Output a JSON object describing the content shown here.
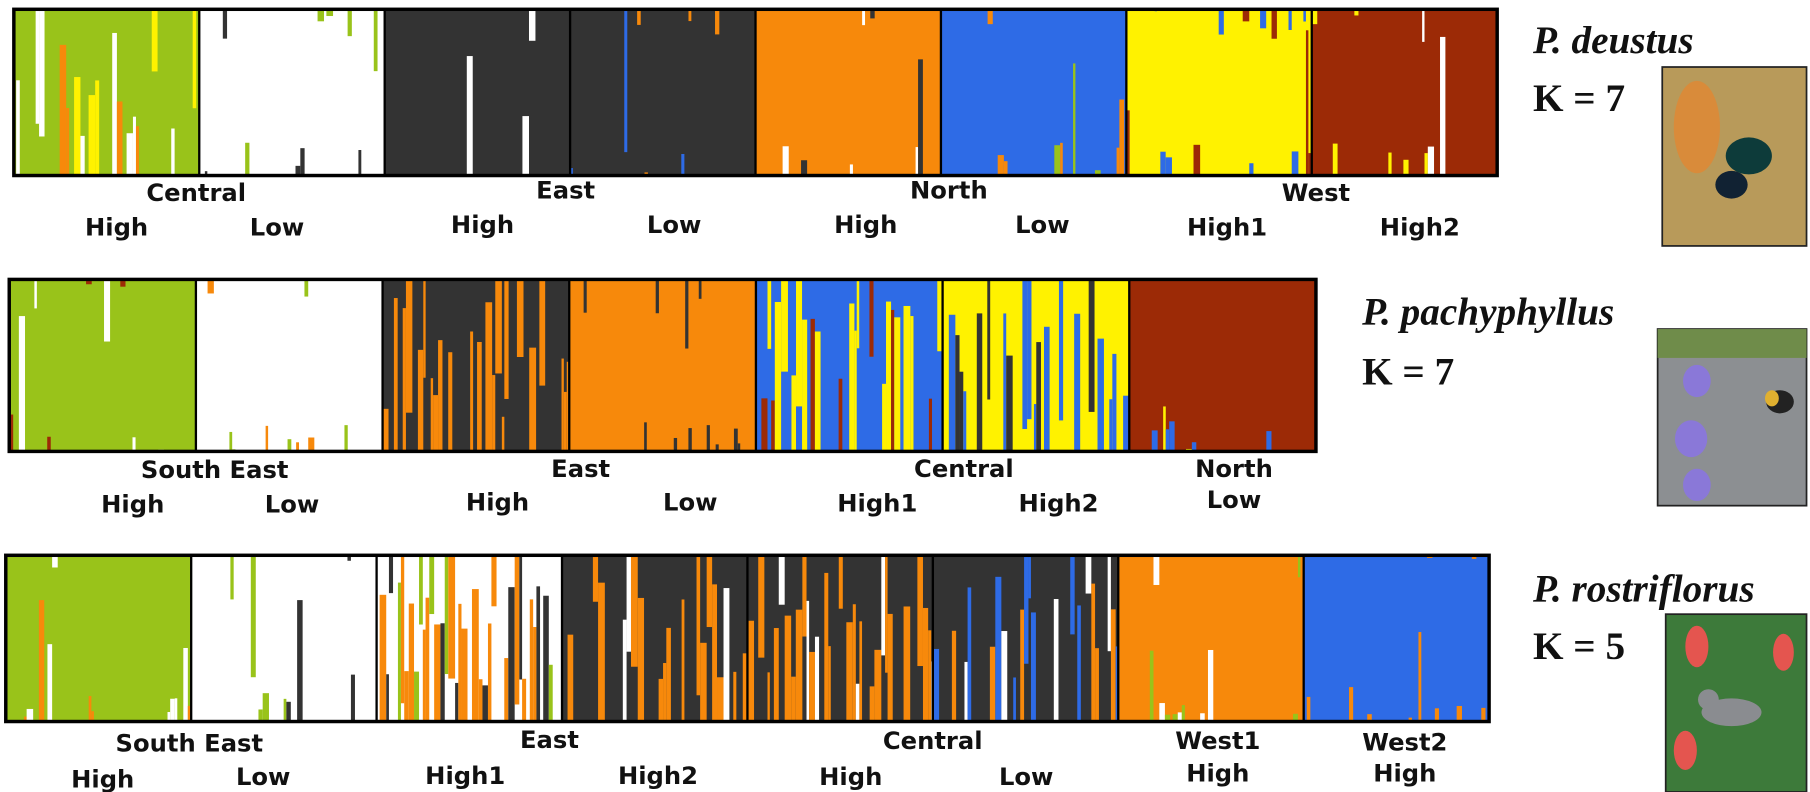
{
  "panels": [
    {
      "species": "P. deustus",
      "k_label": "K = 7",
      "groups": [
        "Central",
        "East",
        "North",
        "West"
      ],
      "subgroups": [
        "High",
        "Low",
        "High",
        "Low",
        "High",
        "Low",
        "High1",
        "High2"
      ],
      "blocks": [
        {
          "color": "#99c31a",
          "mix": [
            "#fff200",
            "#f7890b",
            "#ffffff"
          ]
        },
        {
          "color": "#ffffff",
          "mix": [
            "#99c31a",
            "#333333"
          ]
        },
        {
          "color": "#333333",
          "mix": [
            "#ffffff",
            "#f7890b"
          ]
        },
        {
          "color": "#333333",
          "mix": [
            "#f7890b",
            "#2e6be6"
          ]
        },
        {
          "color": "#f7890b",
          "mix": [
            "#ffffff",
            "#333333"
          ]
        },
        {
          "color": "#2e6be6",
          "mix": [
            "#f7890b",
            "#99c31a"
          ]
        },
        {
          "color": "#fff200",
          "mix": [
            "#2e6be6",
            "#9c2a06"
          ]
        },
        {
          "color": "#9c2a06",
          "mix": [
            "#fff200",
            "#ffffff"
          ]
        }
      ]
    },
    {
      "species": "P. pachyphyllus",
      "k_label": "K = 7",
      "groups": [
        "South East",
        "East",
        "Central",
        "North"
      ],
      "subgroups": [
        "High",
        "Low",
        "High",
        "Low",
        "High1",
        "High2",
        "Low"
      ],
      "blocks": [
        {
          "color": "#99c31a",
          "mix": [
            "#9c2a06",
            "#ffffff"
          ]
        },
        {
          "color": "#ffffff",
          "mix": [
            "#99c31a",
            "#f7890b"
          ]
        },
        {
          "color": "#333333",
          "mix": [
            "#f7890b",
            "#f7890b",
            "#f7890b"
          ]
        },
        {
          "color": "#f7890b",
          "mix": [
            "#333333",
            "#333333"
          ]
        },
        {
          "color": "#2e6be6",
          "mix": [
            "#fff200",
            "#fff200",
            "#9c2a06"
          ]
        },
        {
          "color": "#fff200",
          "mix": [
            "#2e6be6",
            "#2e6be6",
            "#333333"
          ]
        },
        {
          "color": "#9c2a06",
          "mix": [
            "#fff200",
            "#2e6be6"
          ]
        }
      ]
    },
    {
      "species": "P. rostriflorus",
      "k_label": "K = 5",
      "groups": [
        "South East",
        "East",
        "Central",
        "West1",
        "West2"
      ],
      "subgroups": [
        "High",
        "Low",
        "High1",
        "High2",
        "High",
        "Low",
        "High",
        "High"
      ],
      "blocks": [
        {
          "color": "#99c31a",
          "mix": [
            "#ffffff",
            "#f7890b"
          ]
        },
        {
          "color": "#ffffff",
          "mix": [
            "#99c31a",
            "#333333"
          ]
        },
        {
          "color": "#ffffff",
          "mix": [
            "#333333",
            "#f7890b",
            "#f7890b",
            "#99c31a"
          ]
        },
        {
          "color": "#333333",
          "mix": [
            "#ffffff",
            "#f7890b",
            "#f7890b"
          ]
        },
        {
          "color": "#333333",
          "mix": [
            "#f7890b",
            "#f7890b",
            "#ffffff"
          ]
        },
        {
          "color": "#333333",
          "mix": [
            "#ffffff",
            "#f7890b",
            "#2e6be6"
          ]
        },
        {
          "color": "#f7890b",
          "mix": [
            "#ffffff",
            "#99c31a"
          ]
        },
        {
          "color": "#2e6be6",
          "mix": [
            "#f7890b"
          ]
        }
      ]
    }
  ]
}
